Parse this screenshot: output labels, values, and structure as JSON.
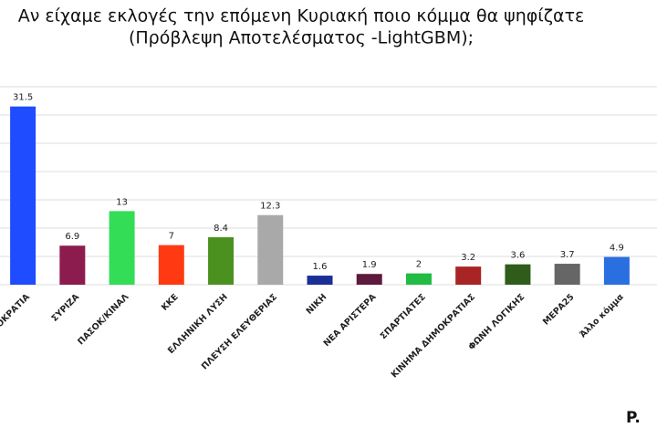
{
  "chart_data": {
    "type": "bar",
    "title": "Αν είχαμε εκλογές την επόμενη Κυριακή ποιο κόμμα θα ψηφίζατε",
    "subtitle": "(Πρόβλεψη Αποτελέσματος -LightGBM);",
    "logo": "P.",
    "categories": [
      "ΝΕΑ ΔΗΜΟΚΡΑΤΙΑ",
      "ΣΥΡΙΖΑ",
      "ΠΑΣΟΚ/ΚΙΝΑΛ",
      "ΚΚΕ",
      "ΕΛΛΗΝΙΚΗ ΛΥΣΗ",
      "ΠΛΕΥΣΗ ΕΛΕΥΘΕΡΙΑΣ",
      "ΝΙΚΗ",
      "ΝΕΑ ΑΡΙΣΤΕΡΑ",
      "ΣΠΑΡΤΙΑΤΕΣ",
      "ΚΙΝΗΜΑ ΔΗΜΟΚΡΑΤΙΑΣ",
      "ΦΩΝΗ ΛΟΓΙΚΗΣ",
      "ΜΕΡΑ25",
      "Άλλο κόμμα"
    ],
    "values": [
      31.5,
      6.9,
      13,
      7,
      8.4,
      12.3,
      1.6,
      1.9,
      2,
      3.2,
      3.6,
      3.7,
      4.9
    ],
    "colors": [
      "#1f4cff",
      "#8c1c4e",
      "#33dd55",
      "#ff3a12",
      "#4b9120",
      "#a9a9a9",
      "#1b2f94",
      "#5c1a3c",
      "#22bb44",
      "#a92424",
      "#2f5c1a",
      "#666666",
      "#2a6fe0"
    ],
    "ylim": [
      0,
      35
    ],
    "yticks": [
      0,
      5,
      10,
      15,
      20,
      25,
      30,
      35
    ],
    "grid": true
  }
}
